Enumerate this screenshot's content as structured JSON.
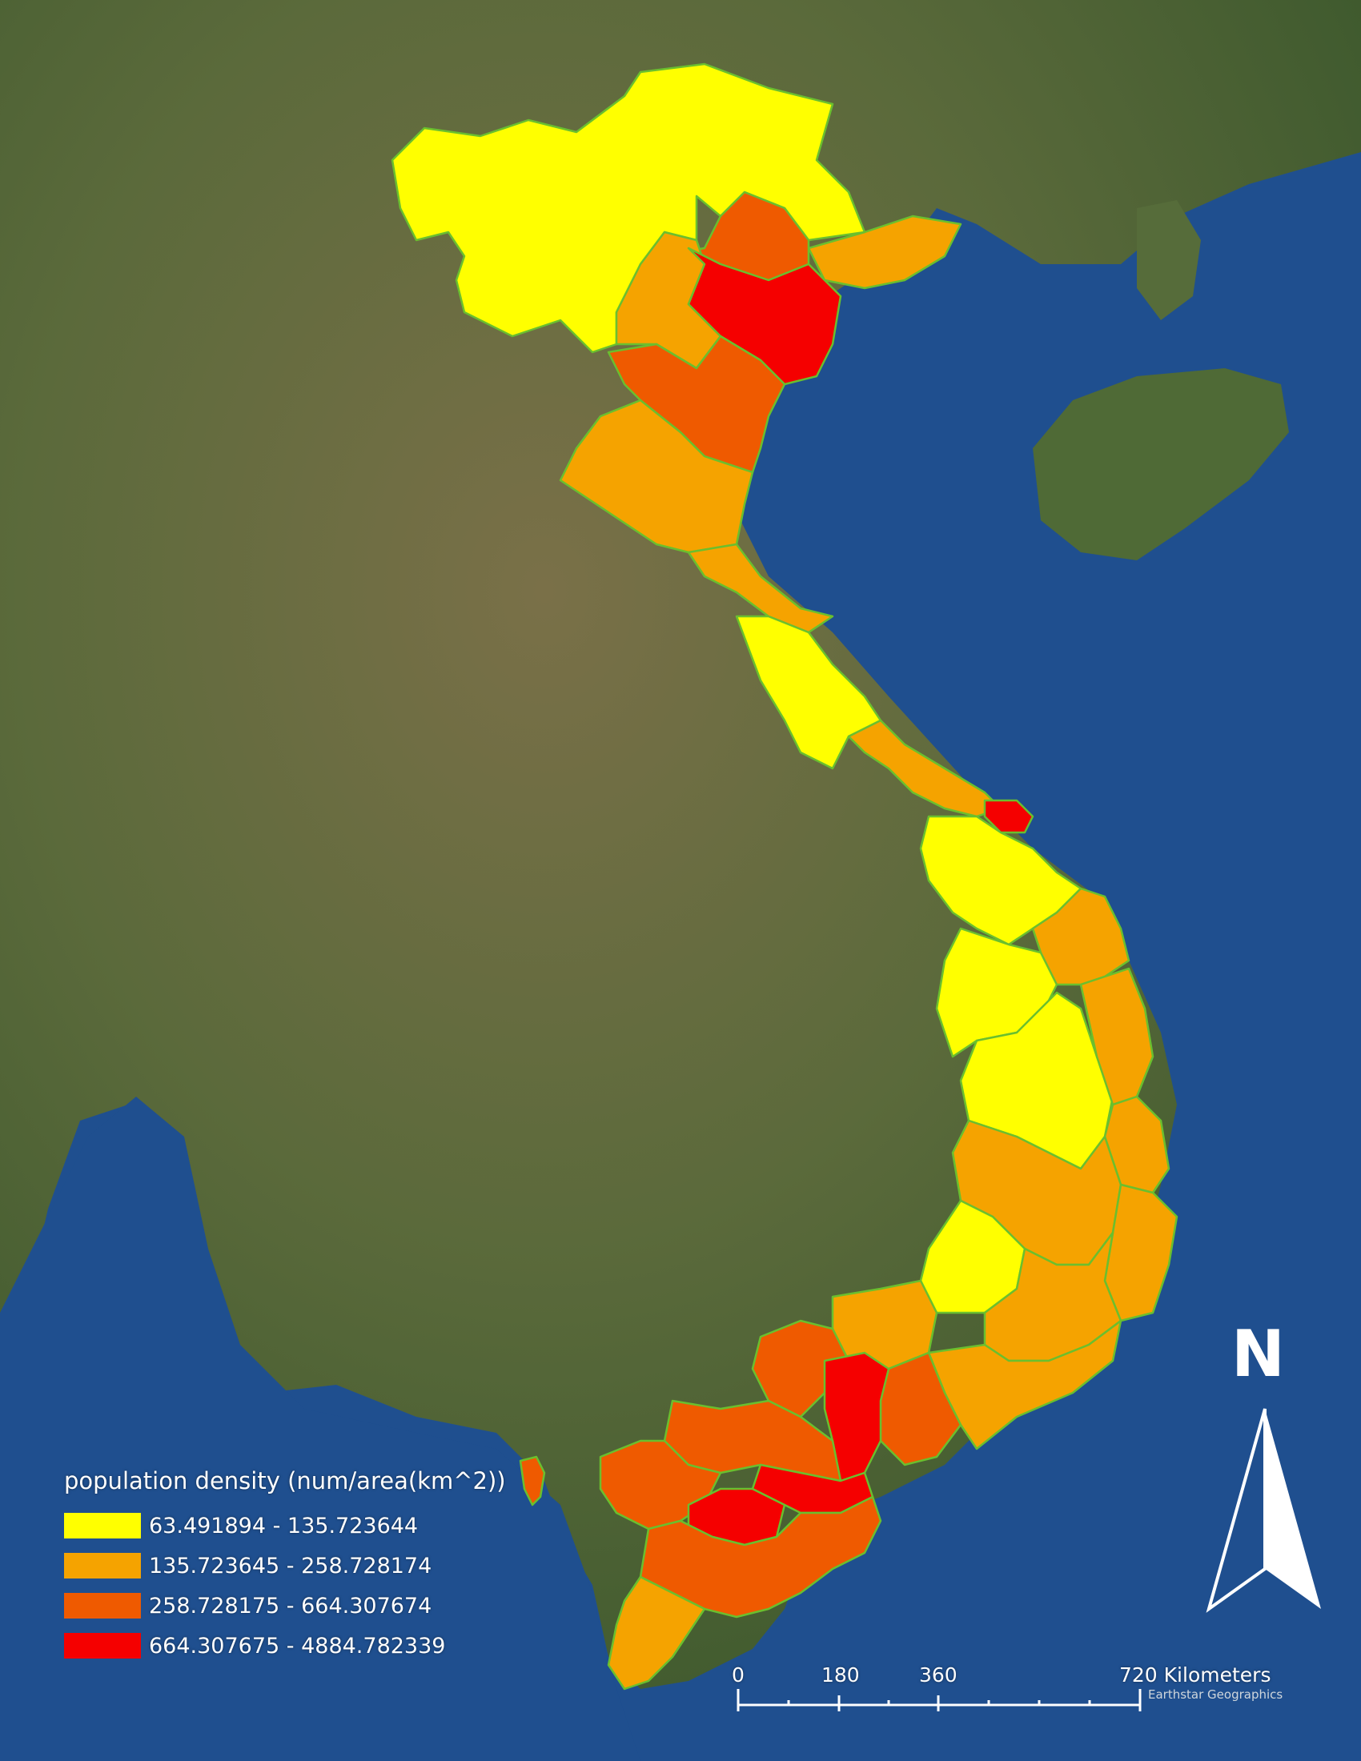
{
  "legend": {
    "title": "population density (num/area(km^2))",
    "classes": [
      {
        "label": "63.491894 - 135.723644",
        "color": "#ffff00"
      },
      {
        "label": "135.723645 - 258.728174",
        "color": "#f5a300"
      },
      {
        "label": "258.728175 - 664.307674",
        "color": "#ef5a00"
      },
      {
        "label": "664.307675 - 4884.782339",
        "color": "#f50000"
      }
    ]
  },
  "scale_bar": {
    "ticks": [
      "0",
      "180",
      "360",
      "720 Kilometers"
    ]
  },
  "north_arrow": {
    "letter": "N",
    "icon": "north-arrow-icon"
  },
  "attribution": "Earthstar Geographics",
  "colors": {
    "ocean": "#1f4f8f",
    "land": "#5a6b3a",
    "boundary": "#6abf2e"
  }
}
